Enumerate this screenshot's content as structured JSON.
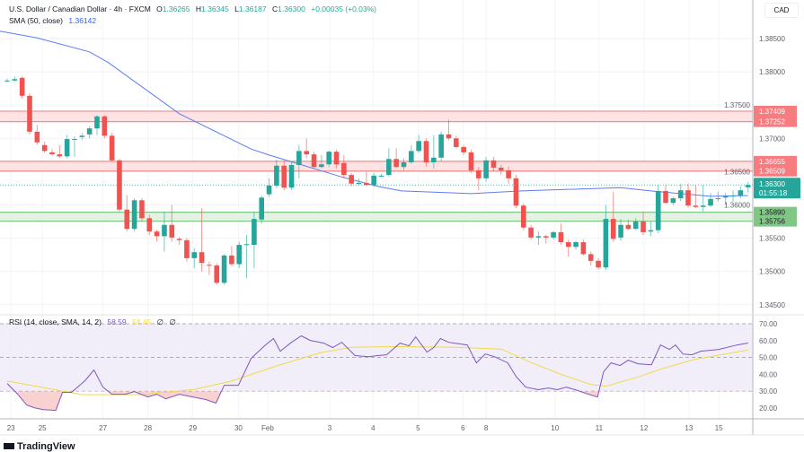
{
  "header": {
    "symbol": "U.S. Dollar / Canadian Dollar · 4h · FXCM",
    "open_label": "O",
    "open": "1.36265",
    "high_label": "H",
    "high": "1.36345",
    "low_label": "L",
    "low": "1.36187",
    "close_label": "C",
    "close": "1.36300",
    "change": "+0.00035 (+0.03%)",
    "sma_label": "SMA (50, close)",
    "sma_value": "1.36142"
  },
  "rsi_legend": {
    "label": "RSI (14, close, SMA, 14, 2)",
    "rsi_value": "58.59",
    "sma_value": "54.45",
    "extra1": "∅",
    "extra2": "∅"
  },
  "currency": "CAD",
  "logo_text": "TradingView",
  "colors": {
    "up": "#26a69a",
    "down": "#ef5350",
    "sma": "#5b7cf5",
    "rsi": "#7e57c2",
    "rsi_sma": "#f2d84a",
    "resistance": "#f28b8b",
    "support": "#81c784",
    "rsi_band": "#ede7f6"
  },
  "chart_data": [
    {
      "type": "candlestick",
      "title": "U.S. Dollar / Canadian Dollar · 4h · FXCM",
      "ylim": [
        1.3435,
        1.388
      ],
      "y_ticks": [
        "1.38500",
        "1.38000",
        "1.37500",
        "1.37000",
        "1.36500",
        "1.36000",
        "1.35500",
        "1.35000",
        "1.34500"
      ],
      "x_tick_labels": [
        "23",
        "25",
        "27",
        "28",
        "29",
        "30",
        "Feb",
        "3",
        "4",
        "5",
        "6",
        "8",
        "10",
        "11",
        "12",
        "13",
        "15"
      ],
      "ohlc": [
        [
          1.3787,
          1.379,
          1.3784,
          1.3787
        ],
        [
          1.3787,
          1.3793,
          1.3785,
          1.3789
        ],
        [
          1.3791,
          1.3793,
          1.376,
          1.3764
        ],
        [
          1.3764,
          1.3768,
          1.3706,
          1.371
        ],
        [
          1.371,
          1.372,
          1.369,
          1.3694
        ],
        [
          1.369,
          1.3695,
          1.3678,
          1.3681
        ],
        [
          1.3679,
          1.3684,
          1.3674,
          1.3676
        ],
        [
          1.3676,
          1.369,
          1.367,
          1.3673
        ],
        [
          1.3673,
          1.3705,
          1.367,
          1.3699
        ],
        [
          1.3699,
          1.3703,
          1.3672,
          1.3699
        ],
        [
          1.3702,
          1.3708,
          1.3698,
          1.3704
        ],
        [
          1.3706,
          1.3718,
          1.37,
          1.3715
        ],
        [
          1.3715,
          1.3735,
          1.3705,
          1.3733
        ],
        [
          1.3733,
          1.3735,
          1.37,
          1.3704
        ],
        [
          1.3704,
          1.3708,
          1.3665,
          1.3667
        ],
        [
          1.3667,
          1.3669,
          1.359,
          1.3593
        ],
        [
          1.3593,
          1.3615,
          1.356,
          1.3564
        ],
        [
          1.3564,
          1.361,
          1.356,
          1.3607
        ],
        [
          1.3607,
          1.361,
          1.3575,
          1.358
        ],
        [
          1.358,
          1.3585,
          1.3555,
          1.356
        ],
        [
          1.356,
          1.3563,
          1.3545,
          1.3553
        ],
        [
          1.3553,
          1.359,
          1.353,
          1.357
        ],
        [
          1.357,
          1.36,
          1.3545,
          1.3551
        ],
        [
          1.3549,
          1.3552,
          1.354,
          1.3547
        ],
        [
          1.3547,
          1.355,
          1.3515,
          1.352
        ],
        [
          1.352,
          1.3535,
          1.3505,
          1.3529
        ],
        [
          1.3529,
          1.3595,
          1.35,
          1.3513
        ],
        [
          1.351,
          1.3515,
          1.3495,
          1.3509
        ],
        [
          1.3509,
          1.3512,
          1.348,
          1.3483
        ],
        [
          1.3483,
          1.3526,
          1.348,
          1.3524
        ],
        [
          1.3524,
          1.3538,
          1.3508,
          1.3511
        ],
        [
          1.3511,
          1.3545,
          1.3505,
          1.354
        ],
        [
          1.3541,
          1.3555,
          1.349,
          1.3541
        ],
        [
          1.354,
          1.359,
          1.3505,
          1.3579
        ],
        [
          1.3578,
          1.3614,
          1.3572,
          1.3611
        ],
        [
          1.3616,
          1.364,
          1.3612,
          1.3629
        ],
        [
          1.3629,
          1.3668,
          1.3625,
          1.3659
        ],
        [
          1.3659,
          1.3667,
          1.3622,
          1.3626
        ],
        [
          1.3626,
          1.3665,
          1.3622,
          1.366
        ],
        [
          1.366,
          1.369,
          1.364,
          1.3681
        ],
        [
          1.3681,
          1.37,
          1.367,
          1.3676
        ],
        [
          1.3676,
          1.368,
          1.3655,
          1.3657
        ],
        [
          1.3657,
          1.3675,
          1.3655,
          1.3661
        ],
        [
          1.3661,
          1.3682,
          1.3657,
          1.368
        ],
        [
          1.368,
          1.3683,
          1.3655,
          1.3661
        ],
        [
          1.3663,
          1.3675,
          1.364,
          1.3645
        ],
        [
          1.3645,
          1.3648,
          1.3628,
          1.3632
        ],
        [
          1.3633,
          1.364,
          1.363,
          1.3633
        ],
        [
          1.3633,
          1.365,
          1.3628,
          1.363
        ],
        [
          1.363,
          1.3648,
          1.3627,
          1.3644
        ],
        [
          1.3644,
          1.3647,
          1.3642,
          1.3644
        ],
        [
          1.3645,
          1.3685,
          1.3643,
          1.3669
        ],
        [
          1.3669,
          1.3685,
          1.3655,
          1.3657
        ],
        [
          1.3657,
          1.367,
          1.3652,
          1.3664
        ],
        [
          1.3664,
          1.369,
          1.3662,
          1.3681
        ],
        [
          1.3681,
          1.3705,
          1.3678,
          1.3696
        ],
        [
          1.3696,
          1.37,
          1.3658,
          1.3664
        ],
        [
          1.3664,
          1.3705,
          1.3655,
          1.3671
        ],
        [
          1.3671,
          1.371,
          1.3665,
          1.3706
        ],
        [
          1.3706,
          1.3728,
          1.3697,
          1.37
        ],
        [
          1.37,
          1.3704,
          1.3685,
          1.3687
        ],
        [
          1.3687,
          1.369,
          1.3675,
          1.3679
        ],
        [
          1.3679,
          1.3683,
          1.3648,
          1.3652
        ],
        [
          1.3652,
          1.3657,
          1.3622,
          1.364
        ],
        [
          1.364,
          1.3672,
          1.3635,
          1.3667
        ],
        [
          1.3667,
          1.3672,
          1.365,
          1.3656
        ],
        [
          1.3656,
          1.366,
          1.3645,
          1.3652
        ],
        [
          1.3652,
          1.3658,
          1.3632,
          1.364
        ],
        [
          1.364,
          1.3645,
          1.3595,
          1.3599
        ],
        [
          1.3599,
          1.3602,
          1.3562,
          1.3566
        ],
        [
          1.3566,
          1.357,
          1.3548,
          1.3551
        ],
        [
          1.3551,
          1.356,
          1.354,
          1.3553
        ],
        [
          1.3553,
          1.3555,
          1.3542,
          1.3551
        ],
        [
          1.3551,
          1.3561,
          1.3548,
          1.3559
        ],
        [
          1.3559,
          1.3572,
          1.354,
          1.3544
        ],
        [
          1.3544,
          1.3548,
          1.3522,
          1.3537
        ],
        [
          1.3537,
          1.3546,
          1.3533,
          1.3544
        ],
        [
          1.3544,
          1.3548,
          1.3524,
          1.3526
        ],
        [
          1.3526,
          1.353,
          1.3509,
          1.3516
        ],
        [
          1.3516,
          1.352,
          1.3503,
          1.3506
        ],
        [
          1.3506,
          1.36,
          1.3502,
          1.3579
        ],
        [
          1.3579,
          1.362,
          1.3545,
          1.3549
        ],
        [
          1.3551,
          1.3579,
          1.3546,
          1.357
        ],
        [
          1.357,
          1.3578,
          1.3562,
          1.3564
        ],
        [
          1.3564,
          1.358,
          1.3562,
          1.3575
        ],
        [
          1.3575,
          1.359,
          1.3555,
          1.3559
        ],
        [
          1.356,
          1.3575,
          1.3553,
          1.3562
        ],
        [
          1.3562,
          1.363,
          1.3558,
          1.3621
        ],
        [
          1.3621,
          1.363,
          1.3602,
          1.3603
        ],
        [
          1.3603,
          1.3612,
          1.36,
          1.361
        ],
        [
          1.361,
          1.3632,
          1.3606,
          1.3622
        ],
        [
          1.3622,
          1.3632,
          1.3596,
          1.3599
        ],
        [
          1.3599,
          1.363,
          1.3595,
          1.3597
        ],
        [
          1.3597,
          1.363,
          1.359,
          1.3599
        ],
        [
          1.3599,
          1.3618,
          1.3597,
          1.3609
        ],
        [
          1.3609,
          1.362,
          1.3605,
          1.361
        ],
        [
          1.3611,
          1.3618,
          1.36,
          1.3613
        ],
        [
          1.3613,
          1.3622,
          1.3605,
          1.3614
        ],
        [
          1.3614,
          1.3628,
          1.361,
          1.3622
        ],
        [
          1.36265,
          1.36345,
          1.36187,
          1.363
        ]
      ],
      "sma_50": [
        [
          -1,
          1.3861
        ],
        [
          4,
          1.3851
        ],
        [
          11,
          1.383
        ],
        [
          13.5,
          1.3814
        ],
        [
          23,
          1.3737
        ],
        [
          32.6,
          1.3684
        ],
        [
          35,
          1.3675
        ],
        [
          44.7,
          1.3642
        ],
        [
          49.5,
          1.3628
        ],
        [
          52.7,
          1.3621
        ],
        [
          62,
          1.3617
        ],
        [
          68.7,
          1.3621
        ],
        [
          82,
          1.3626
        ],
        [
          86,
          1.3621
        ],
        [
          94,
          1.3613
        ],
        [
          99,
          1.36142
        ]
      ],
      "zones": [
        {
          "kind": "resistance",
          "top": "1.37409",
          "bottom": "1.37252"
        },
        {
          "kind": "resistance",
          "top": "1.36655",
          "bottom": "1.36509"
        },
        {
          "kind": "support",
          "top": "1.35890",
          "bottom": "1.35756"
        }
      ],
      "last_price": "1.36300",
      "countdown": "01:55:18"
    },
    {
      "type": "line",
      "title": "RSI (14, close, SMA, 14, 2)",
      "ylim": [
        14,
        76
      ],
      "y_ticks": [
        "70.00",
        "60.00",
        "50.00",
        "40.00",
        "30.00",
        "20.00"
      ],
      "levels": [
        70,
        50,
        30
      ],
      "rsi": [
        [
          0,
          34.6
        ],
        [
          1.4,
          28.2
        ],
        [
          2.6,
          21.8
        ],
        [
          3.6,
          20.2
        ],
        [
          4.8,
          19.1
        ],
        [
          6.5,
          18.6
        ],
        [
          7.4,
          29.3
        ],
        [
          8.6,
          29.3
        ],
        [
          10.4,
          36.2
        ],
        [
          11.6,
          42.6
        ],
        [
          12.8,
          32.4
        ],
        [
          14,
          28.2
        ],
        [
          15.8,
          28.2
        ],
        [
          17,
          29.8
        ],
        [
          18.8,
          26.6
        ],
        [
          20,
          28.2
        ],
        [
          21.2,
          25.5
        ],
        [
          23,
          28.2
        ],
        [
          24.8,
          26.6
        ],
        [
          26.6,
          25
        ],
        [
          27.9,
          22.9
        ],
        [
          29,
          33.5
        ],
        [
          30.9,
          33.5
        ],
        [
          32.6,
          49.5
        ],
        [
          34.5,
          57.4
        ],
        [
          35.6,
          61.2
        ],
        [
          36.5,
          53.7
        ],
        [
          38,
          59
        ],
        [
          39.3,
          62.8
        ],
        [
          40.5,
          60.1
        ],
        [
          42.3,
          58.5
        ],
        [
          43.5,
          55.9
        ],
        [
          44.7,
          59
        ],
        [
          46.5,
          51.1
        ],
        [
          48.3,
          50.5
        ],
        [
          49.5,
          51.1
        ],
        [
          50.7,
          51.6
        ],
        [
          52.5,
          58.5
        ],
        [
          53.7,
          56.9
        ],
        [
          54.6,
          62.2
        ],
        [
          56.1,
          53.2
        ],
        [
          57,
          55.9
        ],
        [
          57.9,
          61.2
        ],
        [
          59,
          59
        ],
        [
          61.5,
          57.4
        ],
        [
          62.7,
          46.8
        ],
        [
          63.9,
          52.1
        ],
        [
          65.1,
          50.5
        ],
        [
          66.9,
          46.8
        ],
        [
          68,
          38.8
        ],
        [
          69.3,
          32.4
        ],
        [
          71,
          30.9
        ],
        [
          72.3,
          31.9
        ],
        [
          73.5,
          30.9
        ],
        [
          74.7,
          32.4
        ],
        [
          75.9,
          30.9
        ],
        [
          77.7,
          28.2
        ],
        [
          78.9,
          26.6
        ],
        [
          79.7,
          41.5
        ],
        [
          80.7,
          46.8
        ],
        [
          81.9,
          45.2
        ],
        [
          83,
          48.4
        ],
        [
          84.3,
          46.3
        ],
        [
          86.1,
          45.7
        ],
        [
          87.3,
          57.4
        ],
        [
          88.5,
          54.8
        ],
        [
          89.3,
          57.4
        ],
        [
          90.3,
          52.1
        ],
        [
          91.5,
          51.6
        ],
        [
          92.7,
          53.7
        ],
        [
          95.1,
          54.8
        ],
        [
          97.5,
          57.4
        ],
        [
          99,
          58.59
        ]
      ],
      "rsi_sma": [
        [
          0,
          36
        ],
        [
          5,
          32
        ],
        [
          10,
          28
        ],
        [
          18,
          28
        ],
        [
          25,
          31
        ],
        [
          30,
          36
        ],
        [
          36,
          45
        ],
        [
          42,
          53
        ],
        [
          46,
          56
        ],
        [
          52,
          56.5
        ],
        [
          60,
          56
        ],
        [
          66,
          55
        ],
        [
          70,
          47
        ],
        [
          74,
          40
        ],
        [
          78,
          34
        ],
        [
          80,
          33
        ],
        [
          84,
          38
        ],
        [
          88,
          44
        ],
        [
          92,
          49
        ],
        [
          96,
          52
        ],
        [
          99,
          54.45
        ]
      ]
    }
  ]
}
